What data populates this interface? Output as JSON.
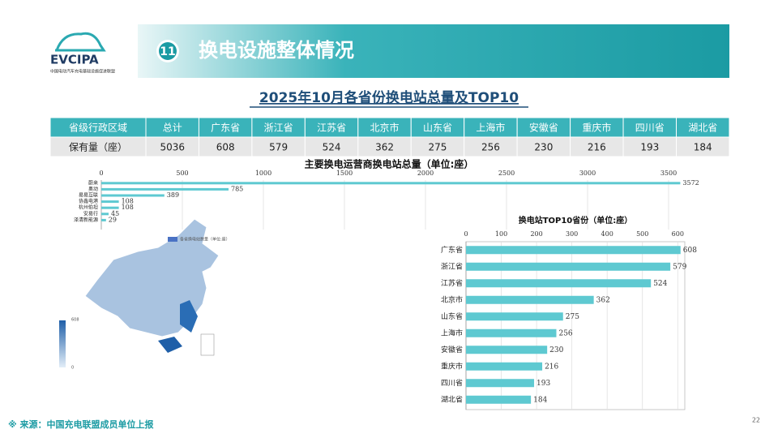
{
  "header": {
    "logo": "EVCIPA",
    "logo_subtitle": "中国电动汽车充电基础设施促进联盟",
    "number": "11",
    "title": "换电设施整体情况"
  },
  "subtitle": "2025年10月各省份换电站总量及TOP10",
  "table": {
    "header": [
      "省级行政区域",
      "总计",
      "广东省",
      "浙江省",
      "江苏省",
      "北京市",
      "山东省",
      "上海市",
      "安徽省",
      "重庆市",
      "四川省",
      "湖北省"
    ],
    "rows": [
      [
        "保有量（座）",
        5036,
        608,
        579,
        524,
        362,
        275,
        256,
        230,
        216,
        193,
        184
      ]
    ]
  },
  "chart_data": [
    {
      "type": "bar",
      "title": "主要换电运营商换电站总量（单位:座）",
      "categories": [
        "蔚来",
        "奥动",
        "易易互联",
        "协鑫电港",
        "杭州伯坦",
        "安易行",
        "泽清新能源"
      ],
      "values": [
        3572,
        785,
        389,
        108,
        108,
        45,
        29
      ],
      "color": "#5ec9d1",
      "xlim": [
        0,
        3600
      ],
      "xticks": [
        0,
        500,
        1000,
        1500,
        2000,
        2500,
        3000,
        3500
      ],
      "grid": true
    },
    {
      "type": "bar",
      "title": "换电站TOP10省份（单位:座）",
      "categories": [
        "广东省",
        "浙江省",
        "江苏省",
        "北京市",
        "山东省",
        "上海市",
        "安徽省",
        "重庆市",
        "四川省",
        "湖北省"
      ],
      "values": [
        608,
        579,
        524,
        362,
        275,
        256,
        230,
        216,
        193,
        184
      ],
      "color": "#5ec9d1",
      "xlim": [
        0,
        620
      ],
      "xticks": [
        0,
        100,
        200,
        300,
        400,
        500,
        600
      ],
      "grid": true
    }
  ],
  "map": {
    "legend": "各省换电站数量（单位:座）",
    "scale_max": "608",
    "scale_min": "0"
  },
  "footer": {
    "source": "※ 来源：中国充电联盟成员单位上报",
    "page": "22"
  }
}
